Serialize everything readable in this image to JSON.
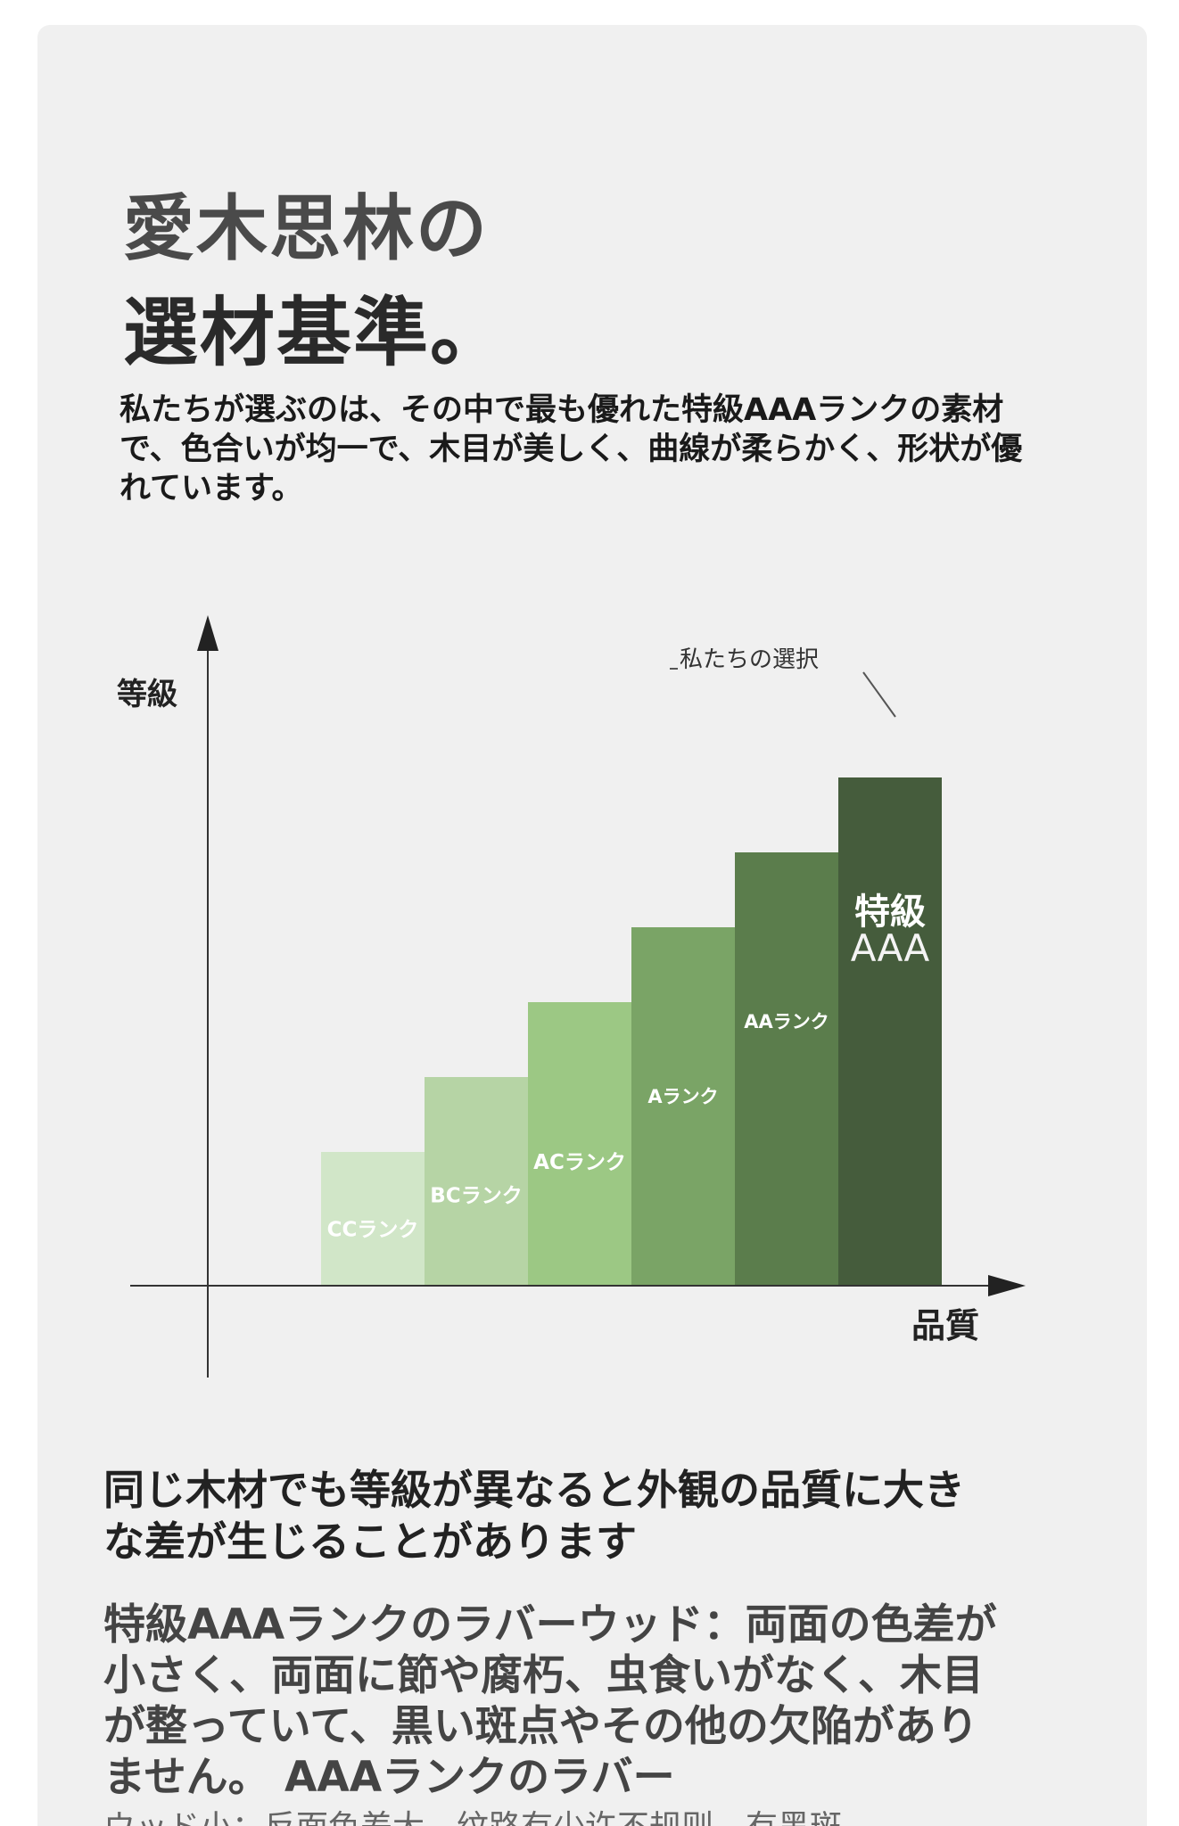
{
  "title": {
    "line1": "愛木思林の",
    "line2": "選材基準。"
  },
  "intro": "私たちが選ぶのは、その中で最も優れた特級AAAランクの素材で、色合いが均一で、木目が美しく、曲線が柔らかく、形状が優れています。",
  "chart_data": {
    "type": "bar",
    "ylabel": "等級",
    "xlabel": "品質",
    "annotation": "私たちの選択",
    "categories": [
      "CCランク",
      "BCランク",
      "ACランク",
      "Aランク",
      "AAランク",
      "特級AAA"
    ],
    "values": [
      1,
      2,
      3,
      4,
      5,
      6
    ],
    "colors": [
      "#d1e6c8",
      "#b6d4a5",
      "#9cc884",
      "#7aa466",
      "#5b7d4c",
      "#455c3c"
    ],
    "special_label": {
      "line1": "特級",
      "line2": "AAA"
    }
  },
  "section": {
    "heading": "同じ木材でも等級が異なると外観の品質に大きな差が生じることがあります",
    "body": "特級AAAランクのラバーウッド：両面の色差が小さく、両面に節や腐朽、虫食いがなく、木目が整っていて、黒い斑点やその他の欠陥がありません。 AAAランクのラバー",
    "overflow": "ウッド小：反面色差大，纹路有少许不规则，有黑斑"
  }
}
